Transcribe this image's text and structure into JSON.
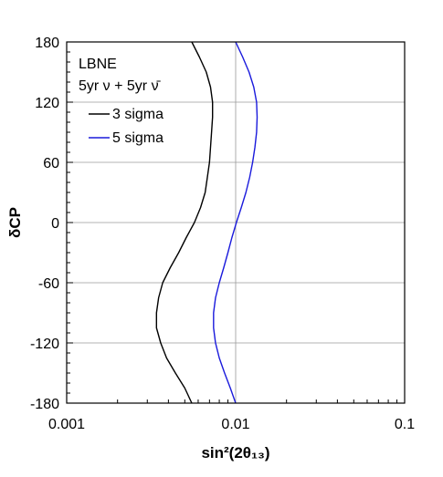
{
  "chart_data": {
    "type": "line",
    "x_scale": "log",
    "xlim": [
      0.001,
      0.1
    ],
    "ylim": [
      -180,
      180
    ],
    "x_ticks": [
      "0.001",
      "0.01",
      "0.1"
    ],
    "y_ticks": [
      "180",
      "120",
      "60",
      "0",
      "-60",
      "-120",
      "-180"
    ],
    "xlabel": "sin²(2θ₁₃)",
    "ylabel": "δCP",
    "grid": "horizontal gridlines at y ticks, vertical line at x = 0.01",
    "legend": {
      "placement": "top-left",
      "title_lines": [
        "LBNE",
        "5yr ν + 5yr ν̄"
      ]
    },
    "series": [
      {
        "name": "3 sigma",
        "color": "#000000",
        "points": [
          [
            0.0055,
            -180
          ],
          [
            0.005,
            -165
          ],
          [
            0.0044,
            -150
          ],
          [
            0.0039,
            -135
          ],
          [
            0.0036,
            -120
          ],
          [
            0.0034,
            -105
          ],
          [
            0.0034,
            -90
          ],
          [
            0.0035,
            -75
          ],
          [
            0.0037,
            -60
          ],
          [
            0.0041,
            -45
          ],
          [
            0.0046,
            -30
          ],
          [
            0.0051,
            -15
          ],
          [
            0.0057,
            0
          ],
          [
            0.0062,
            15
          ],
          [
            0.0066,
            30
          ],
          [
            0.0068,
            45
          ],
          [
            0.007,
            60
          ],
          [
            0.0071,
            75
          ],
          [
            0.0072,
            90
          ],
          [
            0.0073,
            105
          ],
          [
            0.0073,
            120
          ],
          [
            0.0071,
            135
          ],
          [
            0.0067,
            150
          ],
          [
            0.0061,
            165
          ],
          [
            0.0055,
            180
          ]
        ]
      },
      {
        "name": "5 sigma",
        "color": "#1a1adc",
        "points": [
          [
            0.01,
            -180
          ],
          [
            0.0093,
            -165
          ],
          [
            0.0086,
            -150
          ],
          [
            0.008,
            -135
          ],
          [
            0.0076,
            -120
          ],
          [
            0.0074,
            -105
          ],
          [
            0.0074,
            -90
          ],
          [
            0.0076,
            -75
          ],
          [
            0.008,
            -60
          ],
          [
            0.0085,
            -45
          ],
          [
            0.009,
            -30
          ],
          [
            0.0095,
            -15
          ],
          [
            0.0101,
            0
          ],
          [
            0.0108,
            15
          ],
          [
            0.0115,
            30
          ],
          [
            0.0121,
            45
          ],
          [
            0.0126,
            60
          ],
          [
            0.013,
            75
          ],
          [
            0.0133,
            90
          ],
          [
            0.0134,
            105
          ],
          [
            0.0133,
            120
          ],
          [
            0.0128,
            135
          ],
          [
            0.012,
            150
          ],
          [
            0.011,
            165
          ],
          [
            0.01,
            180
          ]
        ]
      }
    ]
  },
  "colors": {
    "grid": "#9a9a9a",
    "axis": "#000000",
    "background": "#ffffff"
  }
}
